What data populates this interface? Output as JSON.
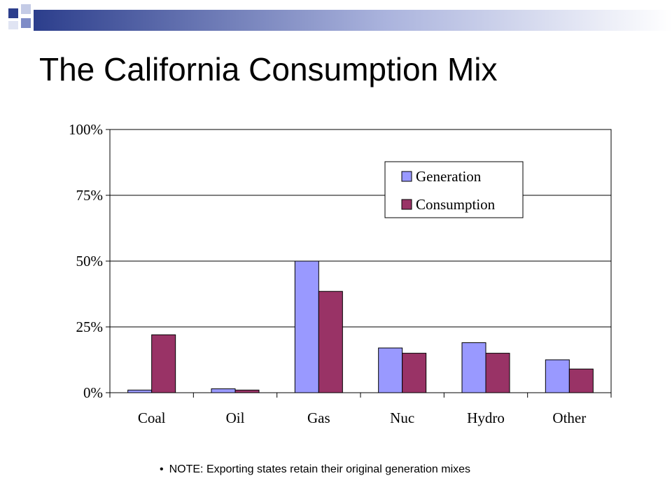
{
  "slide": {
    "title": "The California Consumption Mix",
    "note": "NOTE: Exporting states retain their original generation mixes"
  },
  "colors": {
    "header_dark": "#2c3e8c",
    "header_mid": "#7f8cc7",
    "header_light": "#c4cbe6",
    "generation": "#9999ff",
    "consumption": "#993366"
  },
  "chart_data": {
    "type": "bar",
    "categories": [
      "Coal",
      "Oil",
      "Gas",
      "Nuc",
      "Hydro",
      "Other"
    ],
    "series": [
      {
        "name": "Generation",
        "values": [
          1,
          1.5,
          50,
          17,
          19,
          12.5
        ]
      },
      {
        "name": "Consumption",
        "values": [
          22,
          1,
          38.5,
          15,
          15,
          9
        ]
      }
    ],
    "y_ticks": [
      "0%",
      "25%",
      "50%",
      "75%",
      "100%"
    ],
    "ylim": [
      0,
      100
    ],
    "grid": true,
    "legend_position": "top-right"
  }
}
